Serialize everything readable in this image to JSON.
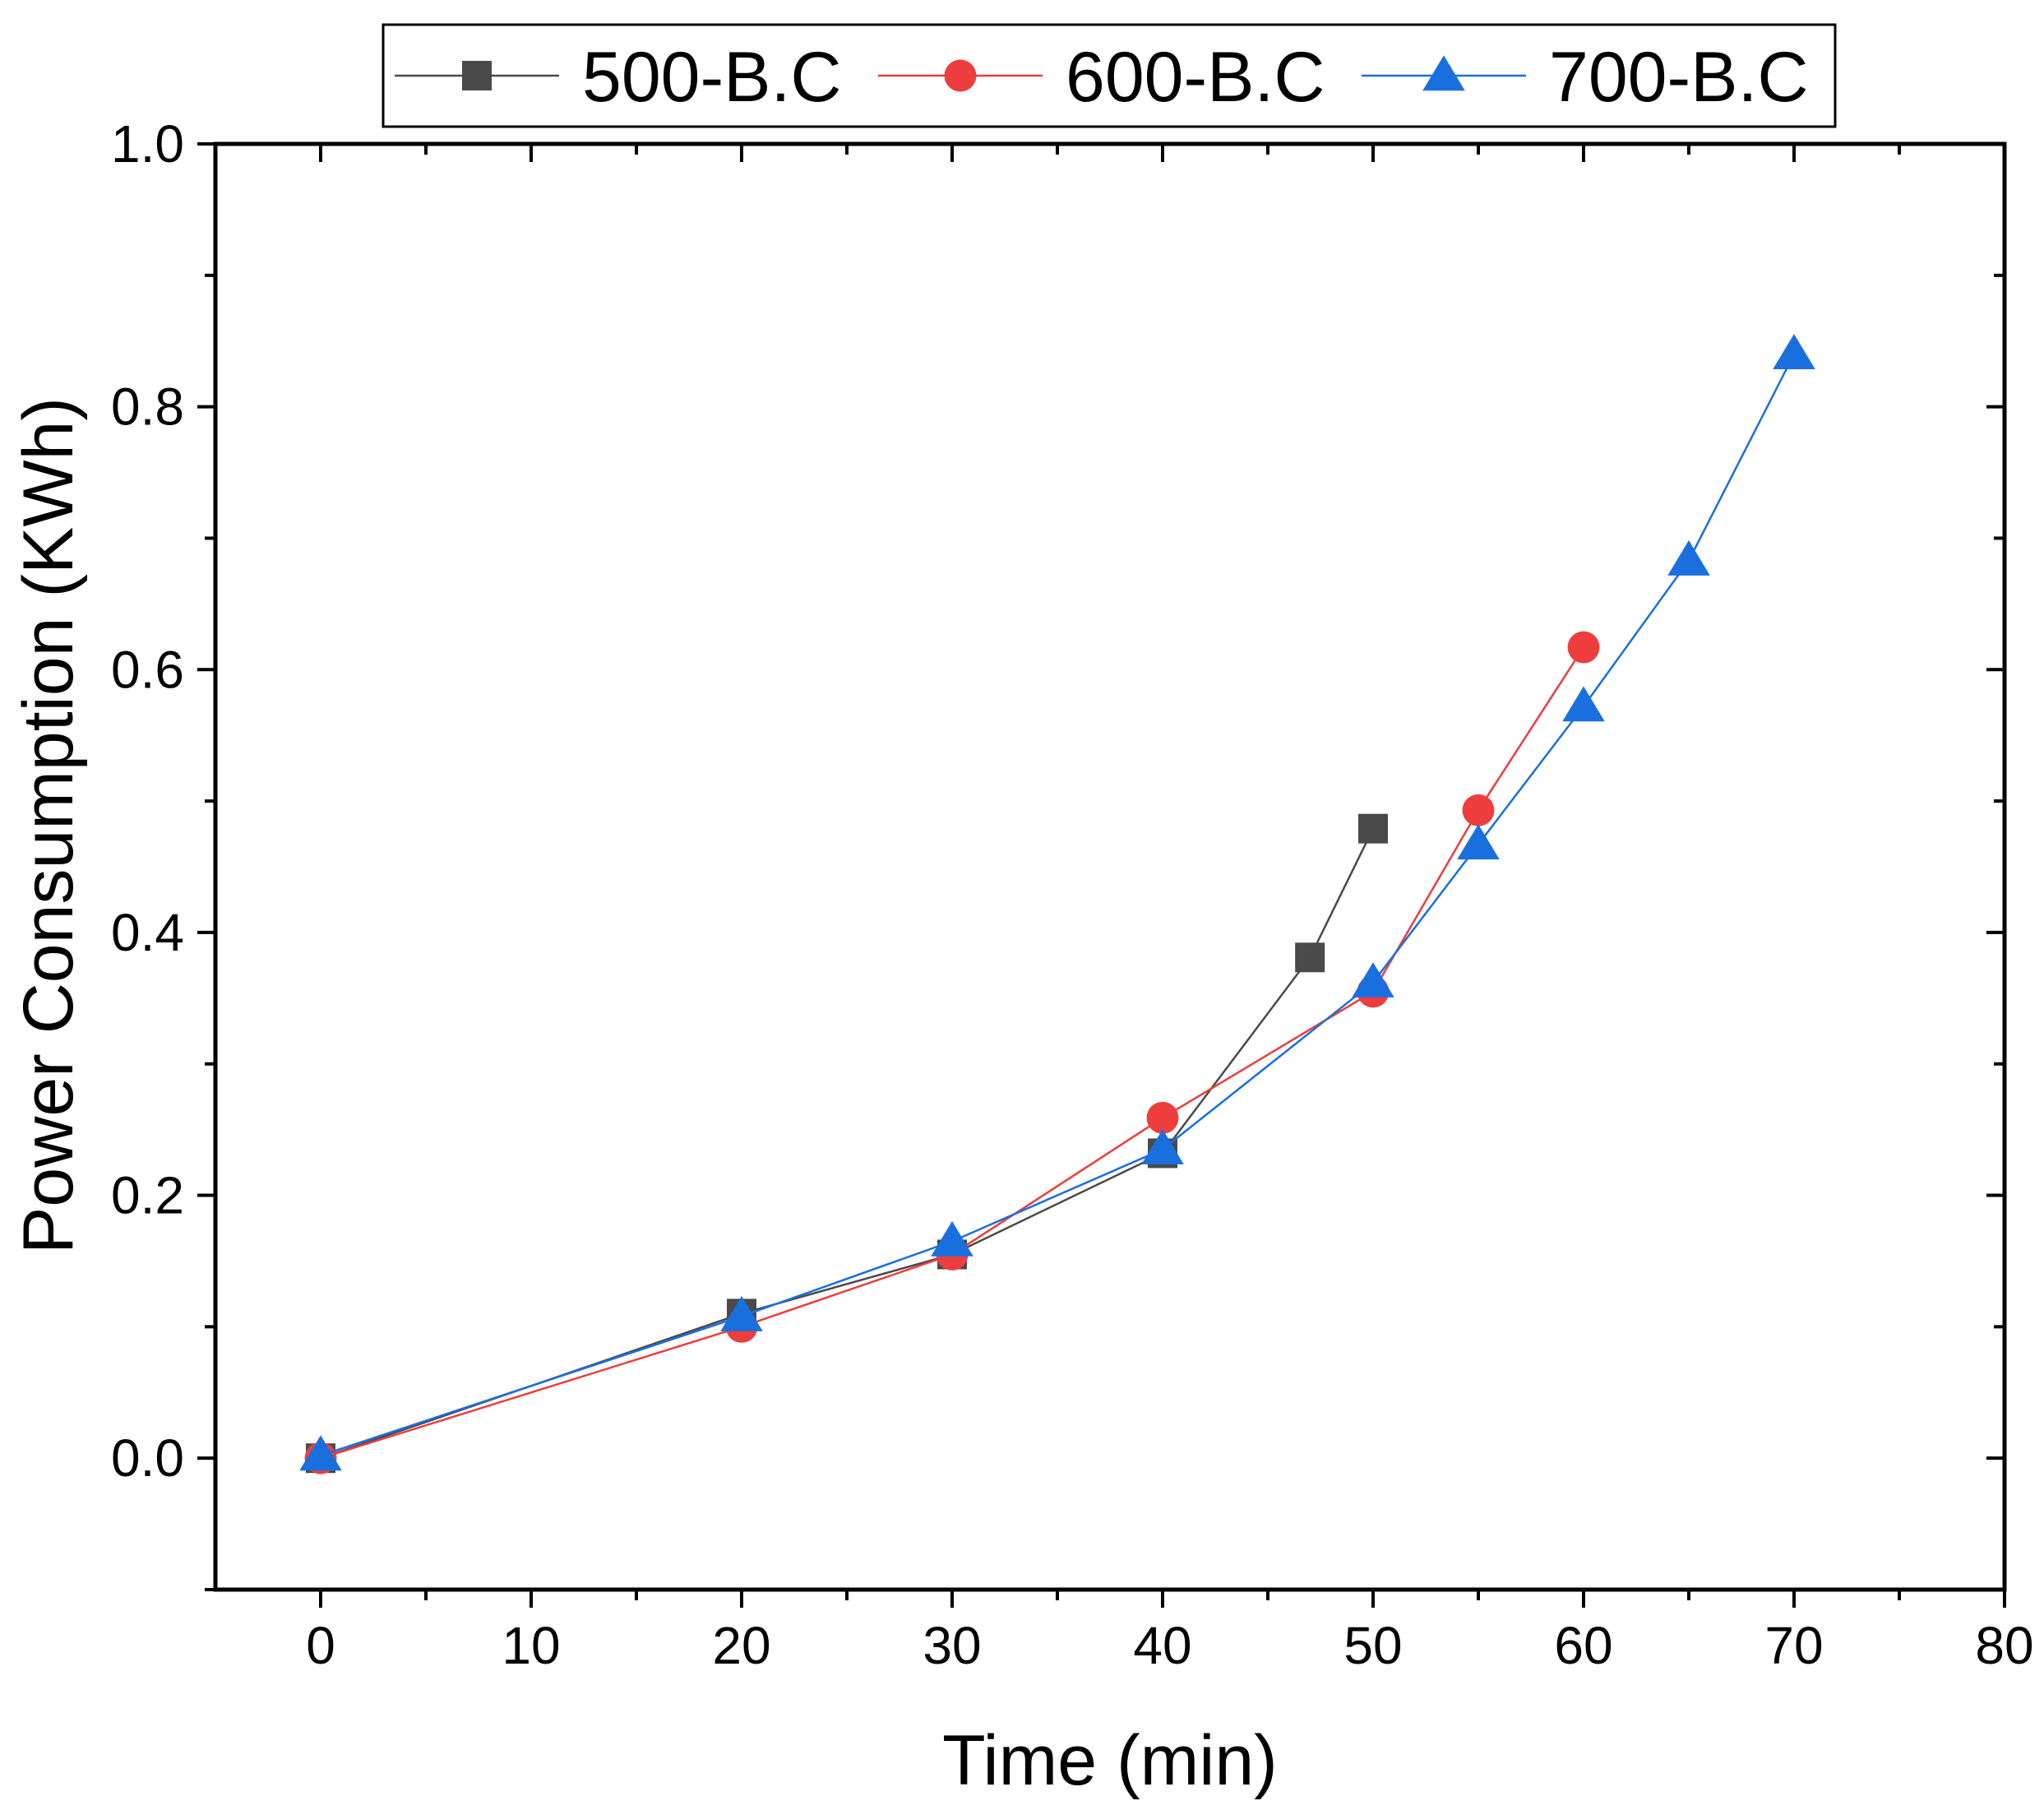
{
  "chart_data": {
    "type": "line",
    "title": "",
    "xlabel": "Time (min)",
    "ylabel": "Power Consumption (KWh)",
    "xlim": [
      -5,
      80
    ],
    "ylim": [
      -0.1,
      1.0
    ],
    "xticks": [
      0,
      10,
      20,
      30,
      40,
      50,
      60,
      70,
      80
    ],
    "xtick_labels": [
      "0",
      "10",
      "20",
      "30",
      "40",
      "50",
      "60",
      "70",
      "80"
    ],
    "yticks": [
      0.0,
      0.2,
      0.4,
      0.6,
      0.8,
      1.0
    ],
    "ytick_labels": [
      "0.0",
      "0.2",
      "0.4",
      "0.6",
      "0.8",
      "1.0"
    ],
    "grid": false,
    "legend_position": "top",
    "series": [
      {
        "name": "500-B.C",
        "color": "#4a4a4a",
        "marker": "square",
        "x": [
          0,
          20,
          30,
          40,
          47,
          50
        ],
        "y": [
          0.0,
          0.11,
          0.155,
          0.232,
          0.381,
          0.479
        ]
      },
      {
        "name": "600-B.C",
        "color": "#ee3d3d",
        "marker": "circle",
        "x": [
          0,
          20,
          30,
          40,
          50,
          55,
          60
        ],
        "y": [
          0.0,
          0.1,
          0.155,
          0.259,
          0.355,
          0.493,
          0.617
        ]
      },
      {
        "name": "700-B.C",
        "color": "#1a6fdf",
        "marker": "triangle",
        "x": [
          0,
          20,
          30,
          40,
          50,
          55,
          60,
          65,
          70
        ],
        "y": [
          0.002,
          0.108,
          0.165,
          0.235,
          0.362,
          0.467,
          0.572,
          0.683,
          0.84
        ]
      }
    ]
  }
}
